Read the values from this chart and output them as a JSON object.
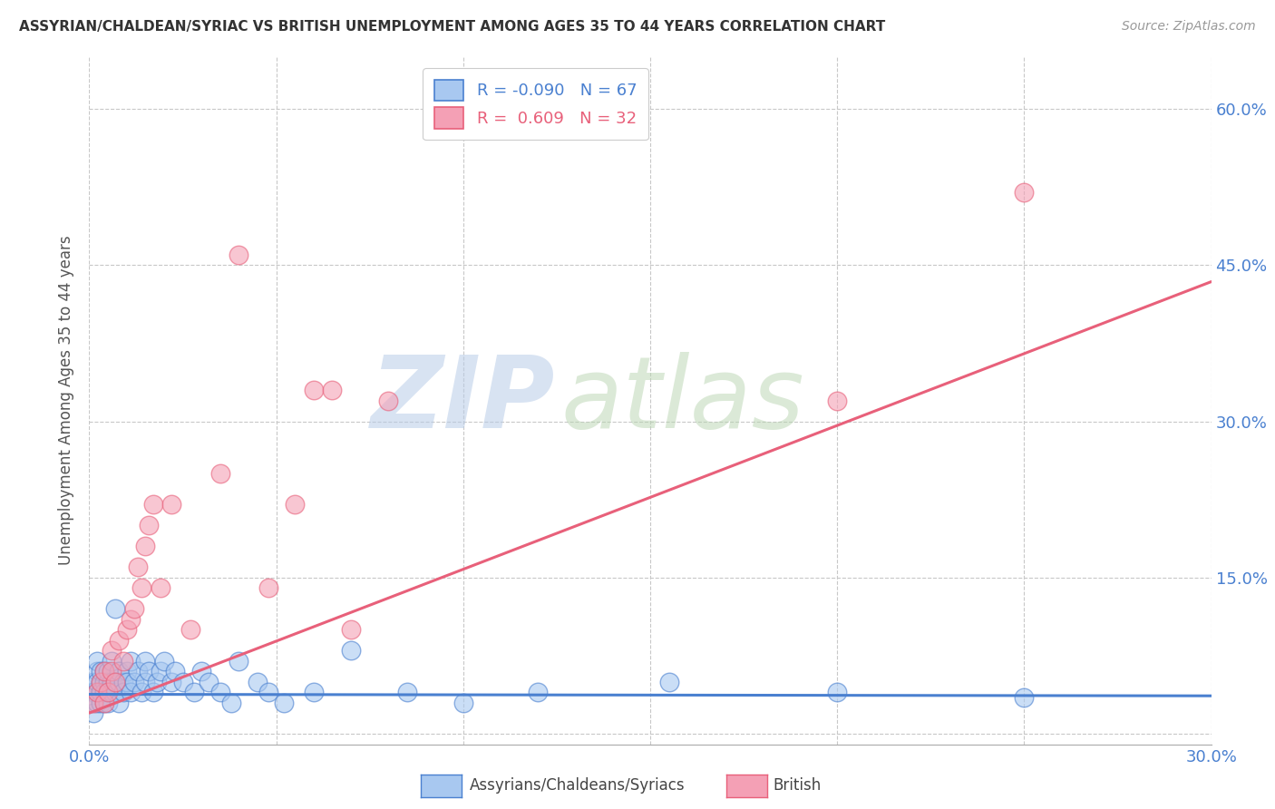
{
  "title": "ASSYRIAN/CHALDEAN/SYRIAC VS BRITISH UNEMPLOYMENT AMONG AGES 35 TO 44 YEARS CORRELATION CHART",
  "source": "Source: ZipAtlas.com",
  "ylabel": "Unemployment Among Ages 35 to 44 years",
  "xlim": [
    0.0,
    0.3
  ],
  "ylim": [
    -0.01,
    0.65
  ],
  "xticks": [
    0.0,
    0.05,
    0.1,
    0.15,
    0.2,
    0.25,
    0.3
  ],
  "yticks": [
    0.0,
    0.15,
    0.3,
    0.45,
    0.6
  ],
  "legend_R1": "-0.090",
  "legend_N1": "67",
  "legend_R2": "0.609",
  "legend_N2": "32",
  "color_blue": "#A8C8F0",
  "color_pink": "#F4A0B5",
  "color_line_blue": "#4A80D0",
  "color_line_pink": "#E8607A",
  "color_grid": "#C8C8C8",
  "watermark_zip": "ZIP",
  "watermark_atlas": "atlas",
  "watermark_color_zip": "#B8CCE8",
  "watermark_color_atlas": "#C8D8C8",
  "blue_slope": -0.005,
  "blue_intercept": 0.038,
  "pink_slope": 1.38,
  "pink_intercept": 0.02,
  "blue_x": [
    0.001,
    0.001,
    0.001,
    0.001,
    0.002,
    0.002,
    0.002,
    0.002,
    0.002,
    0.003,
    0.003,
    0.003,
    0.003,
    0.003,
    0.004,
    0.004,
    0.004,
    0.004,
    0.005,
    0.005,
    0.005,
    0.005,
    0.006,
    0.006,
    0.006,
    0.007,
    0.007,
    0.007,
    0.008,
    0.008,
    0.008,
    0.009,
    0.009,
    0.01,
    0.01,
    0.011,
    0.011,
    0.012,
    0.013,
    0.014,
    0.015,
    0.015,
    0.016,
    0.017,
    0.018,
    0.019,
    0.02,
    0.022,
    0.023,
    0.025,
    0.028,
    0.03,
    0.032,
    0.035,
    0.038,
    0.04,
    0.045,
    0.048,
    0.052,
    0.06,
    0.07,
    0.085,
    0.1,
    0.12,
    0.155,
    0.2,
    0.25
  ],
  "blue_y": [
    0.05,
    0.03,
    0.02,
    0.04,
    0.06,
    0.04,
    0.03,
    0.05,
    0.07,
    0.04,
    0.05,
    0.03,
    0.06,
    0.04,
    0.05,
    0.04,
    0.06,
    0.03,
    0.05,
    0.04,
    0.06,
    0.03,
    0.05,
    0.07,
    0.04,
    0.05,
    0.12,
    0.04,
    0.05,
    0.06,
    0.03,
    0.05,
    0.04,
    0.06,
    0.05,
    0.04,
    0.07,
    0.05,
    0.06,
    0.04,
    0.07,
    0.05,
    0.06,
    0.04,
    0.05,
    0.06,
    0.07,
    0.05,
    0.06,
    0.05,
    0.04,
    0.06,
    0.05,
    0.04,
    0.03,
    0.07,
    0.05,
    0.04,
    0.03,
    0.04,
    0.08,
    0.04,
    0.03,
    0.04,
    0.05,
    0.04,
    0.035
  ],
  "pink_x": [
    0.001,
    0.002,
    0.003,
    0.004,
    0.004,
    0.005,
    0.006,
    0.006,
    0.007,
    0.008,
    0.009,
    0.01,
    0.011,
    0.012,
    0.013,
    0.014,
    0.015,
    0.016,
    0.017,
    0.019,
    0.022,
    0.027,
    0.035,
    0.04,
    0.048,
    0.055,
    0.06,
    0.065,
    0.07,
    0.08,
    0.2,
    0.25
  ],
  "pink_y": [
    0.03,
    0.04,
    0.05,
    0.03,
    0.06,
    0.04,
    0.06,
    0.08,
    0.05,
    0.09,
    0.07,
    0.1,
    0.11,
    0.12,
    0.16,
    0.14,
    0.18,
    0.2,
    0.22,
    0.14,
    0.22,
    0.1,
    0.25,
    0.46,
    0.14,
    0.22,
    0.33,
    0.33,
    0.1,
    0.32,
    0.32,
    0.52
  ]
}
